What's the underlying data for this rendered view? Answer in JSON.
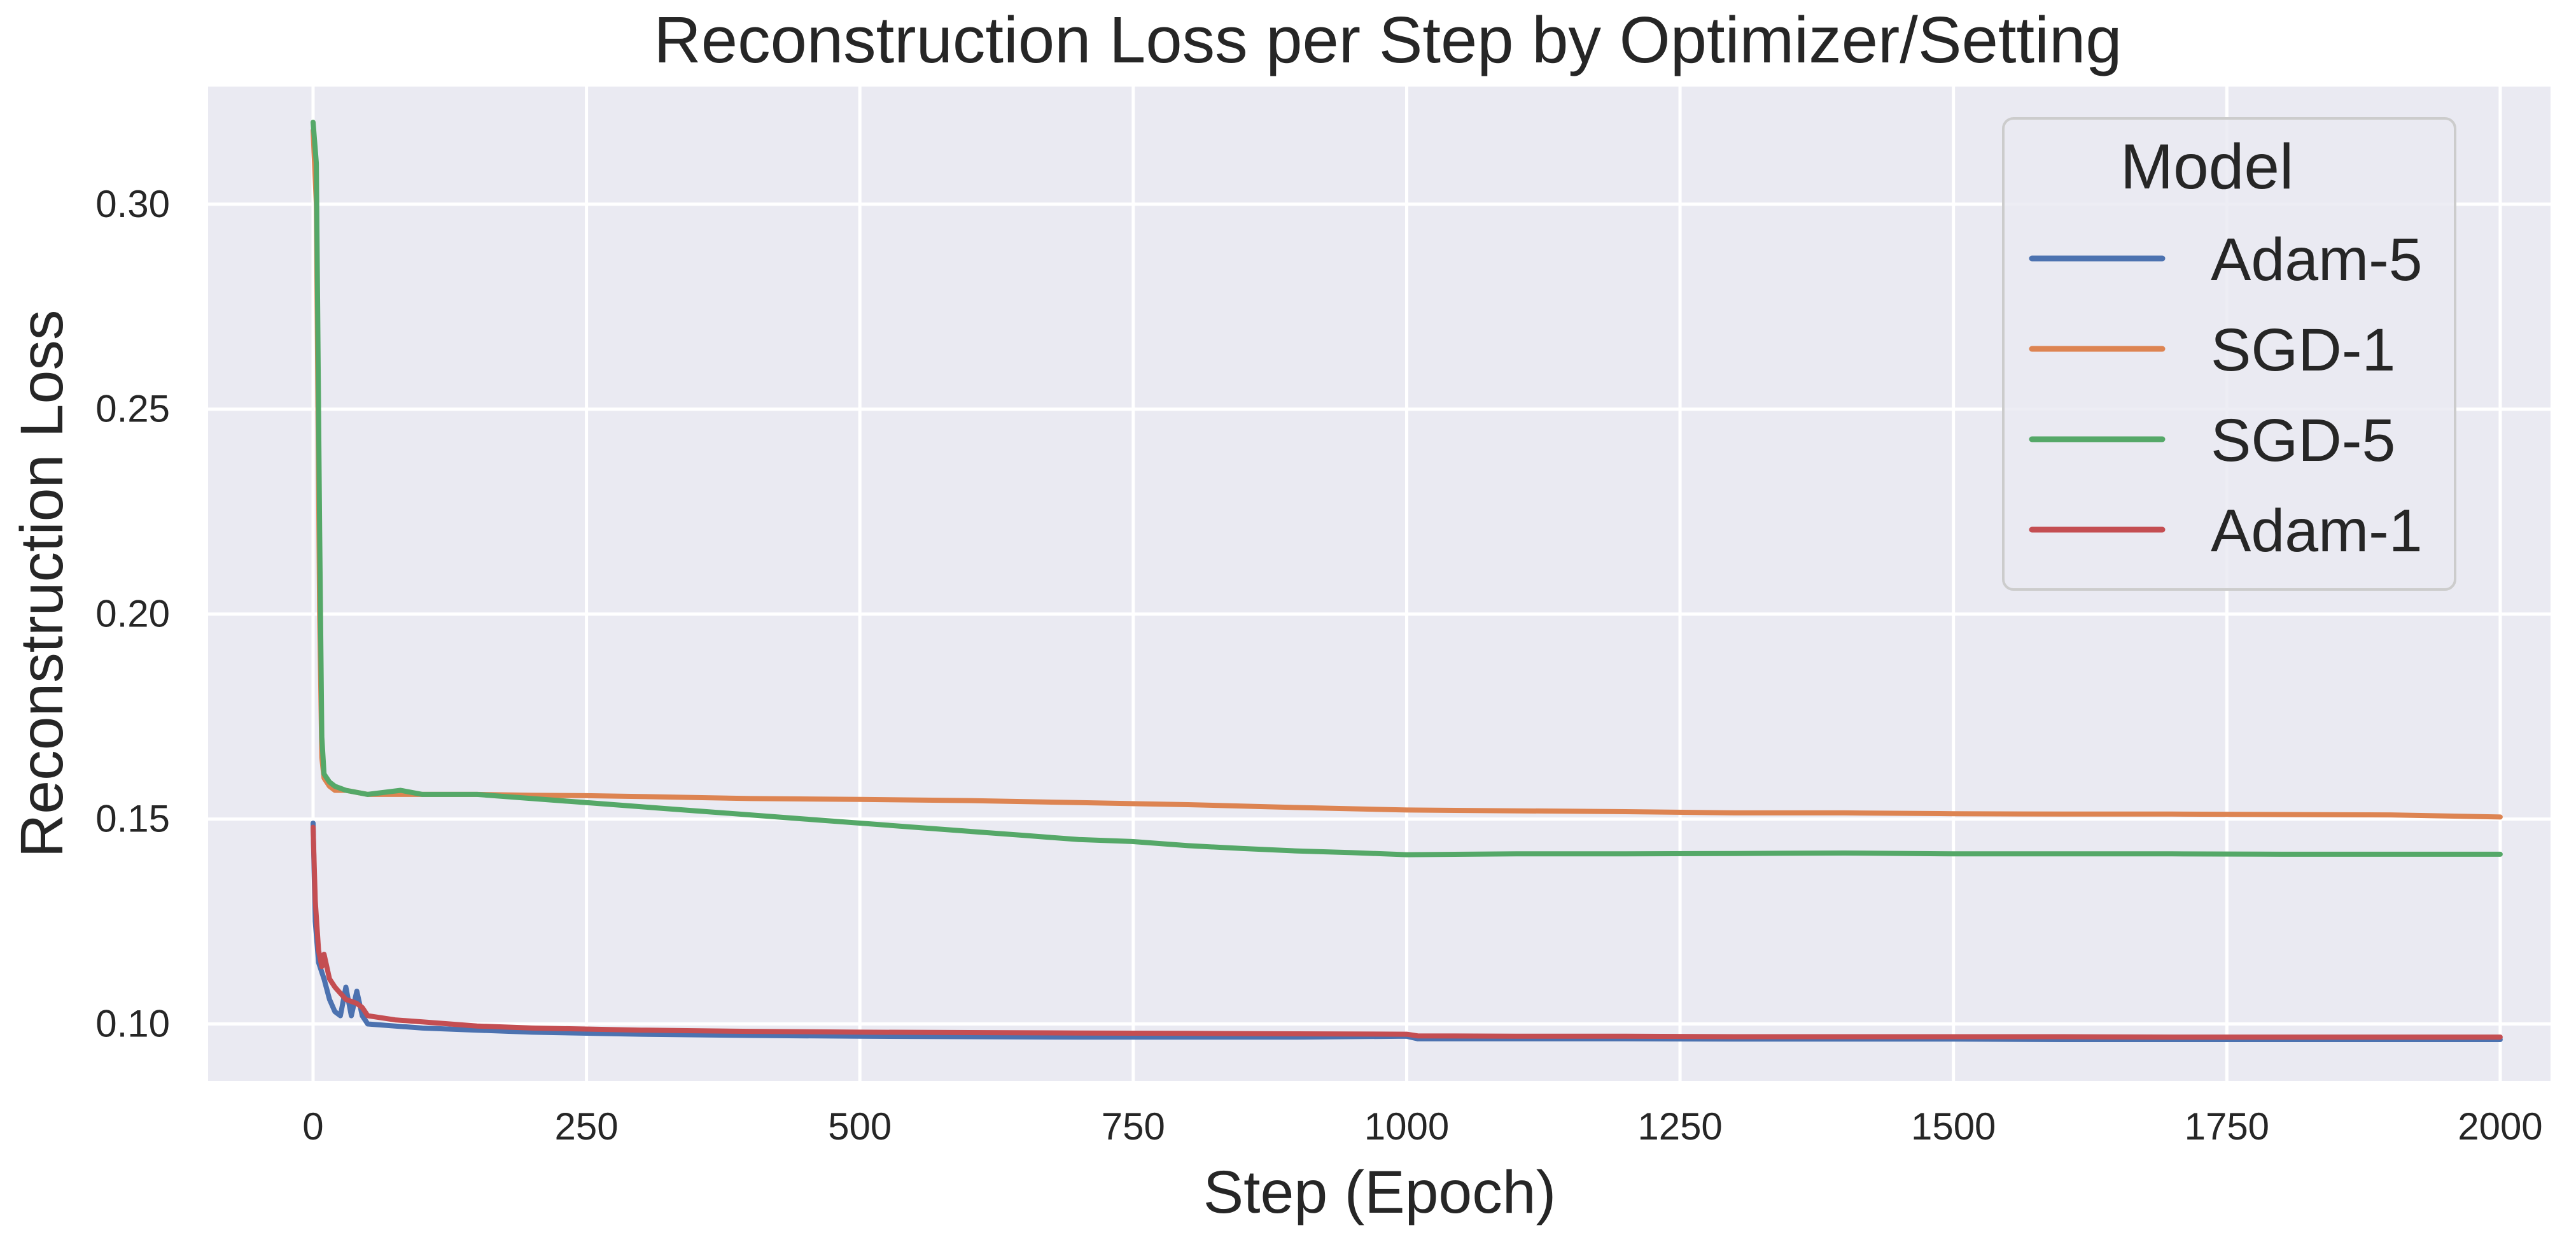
{
  "chart_data": {
    "type": "line",
    "title": "Reconstruction Loss per Step by Optimizer/Setting",
    "xlabel": "Step (Epoch)",
    "ylabel": "Reconstruction Loss",
    "xlim": [
      -96,
      2046
    ],
    "ylim": [
      0.0861,
      0.3287
    ],
    "xticks": [
      0,
      250,
      500,
      750,
      1000,
      1250,
      1500,
      1750,
      2000
    ],
    "yticks": [
      0.1,
      0.15,
      0.2,
      0.25,
      0.3
    ],
    "xtick_labels": [
      "0",
      "250",
      "500",
      "750",
      "1000",
      "1250",
      "1500",
      "1750",
      "2000"
    ],
    "ytick_labels": [
      "0.10",
      "0.15",
      "0.20",
      "0.25",
      "0.30"
    ],
    "grid": true,
    "legend": {
      "title": "Model",
      "position": "top-right"
    },
    "series": [
      {
        "name": "Adam-5",
        "color": "#4c72b0",
        "x": [
          0,
          2,
          5,
          10,
          15,
          20,
          25,
          30,
          35,
          40,
          45,
          50,
          75,
          100,
          150,
          200,
          300,
          400,
          500,
          600,
          700,
          800,
          900,
          1000,
          1010,
          1100,
          1200,
          1300,
          1400,
          1500,
          1600,
          1700,
          1800,
          1900,
          2000
        ],
        "y": [
          0.149,
          0.125,
          0.115,
          0.111,
          0.106,
          0.103,
          0.102,
          0.109,
          0.102,
          0.108,
          0.102,
          0.1,
          0.0995,
          0.099,
          0.0985,
          0.098,
          0.0975,
          0.0972,
          0.097,
          0.0969,
          0.0968,
          0.0968,
          0.0968,
          0.097,
          0.0964,
          0.0964,
          0.0964,
          0.0963,
          0.0963,
          0.0963,
          0.0962,
          0.0962,
          0.0962,
          0.0962,
          0.0962
        ]
      },
      {
        "name": "SGD-1",
        "color": "#dd8452",
        "x": [
          0,
          3,
          6,
          8,
          10,
          15,
          20,
          30,
          50,
          100,
          150,
          200,
          250,
          300,
          400,
          500,
          600,
          700,
          800,
          900,
          1000,
          1100,
          1200,
          1300,
          1400,
          1500,
          1600,
          1700,
          1800,
          1900,
          2000
        ],
        "y": [
          0.318,
          0.3,
          0.2,
          0.165,
          0.16,
          0.158,
          0.157,
          0.157,
          0.156,
          0.156,
          0.156,
          0.1558,
          0.1557,
          0.1555,
          0.155,
          0.1548,
          0.1545,
          0.154,
          0.1535,
          0.1528,
          0.1522,
          0.152,
          0.1518,
          0.1515,
          0.1515,
          0.1513,
          0.1512,
          0.1512,
          0.1511,
          0.151,
          0.1505
        ]
      },
      {
        "name": "SGD-5",
        "color": "#55a868",
        "x": [
          0,
          3,
          6,
          8,
          10,
          15,
          20,
          30,
          50,
          80,
          100,
          150,
          200,
          250,
          300,
          350,
          400,
          450,
          500,
          550,
          600,
          650,
          700,
          750,
          800,
          850,
          900,
          950,
          1000,
          1100,
          1200,
          1300,
          1400,
          1500,
          1600,
          1700,
          1800,
          1900,
          2000
        ],
        "y": [
          0.32,
          0.31,
          0.22,
          0.17,
          0.161,
          0.159,
          0.158,
          0.157,
          0.156,
          0.157,
          0.156,
          0.156,
          0.155,
          0.154,
          0.153,
          0.152,
          0.151,
          0.15,
          0.149,
          0.148,
          0.147,
          0.146,
          0.145,
          0.1445,
          0.1435,
          0.1428,
          0.1422,
          0.1418,
          0.1413,
          0.1415,
          0.1415,
          0.1416,
          0.1417,
          0.1415,
          0.1415,
          0.1415,
          0.1414,
          0.1414,
          0.1414
        ]
      },
      {
        "name": "Adam-1",
        "color": "#c44e52",
        "x": [
          0,
          2,
          5,
          8,
          10,
          15,
          20,
          30,
          40,
          45,
          50,
          75,
          100,
          150,
          200,
          300,
          400,
          500,
          600,
          700,
          800,
          900,
          1000,
          1010,
          1100,
          1200,
          1300,
          1400,
          1500,
          1600,
          1700,
          1800,
          1900,
          2000
        ],
        "y": [
          0.148,
          0.13,
          0.118,
          0.114,
          0.117,
          0.111,
          0.109,
          0.106,
          0.105,
          0.104,
          0.102,
          0.101,
          0.1005,
          0.0995,
          0.099,
          0.0985,
          0.0982,
          0.098,
          0.0979,
          0.0978,
          0.0977,
          0.0976,
          0.0975,
          0.0971,
          0.097,
          0.097,
          0.0969,
          0.0969,
          0.0969,
          0.0969,
          0.0968,
          0.0968,
          0.0968,
          0.0968
        ]
      }
    ]
  }
}
